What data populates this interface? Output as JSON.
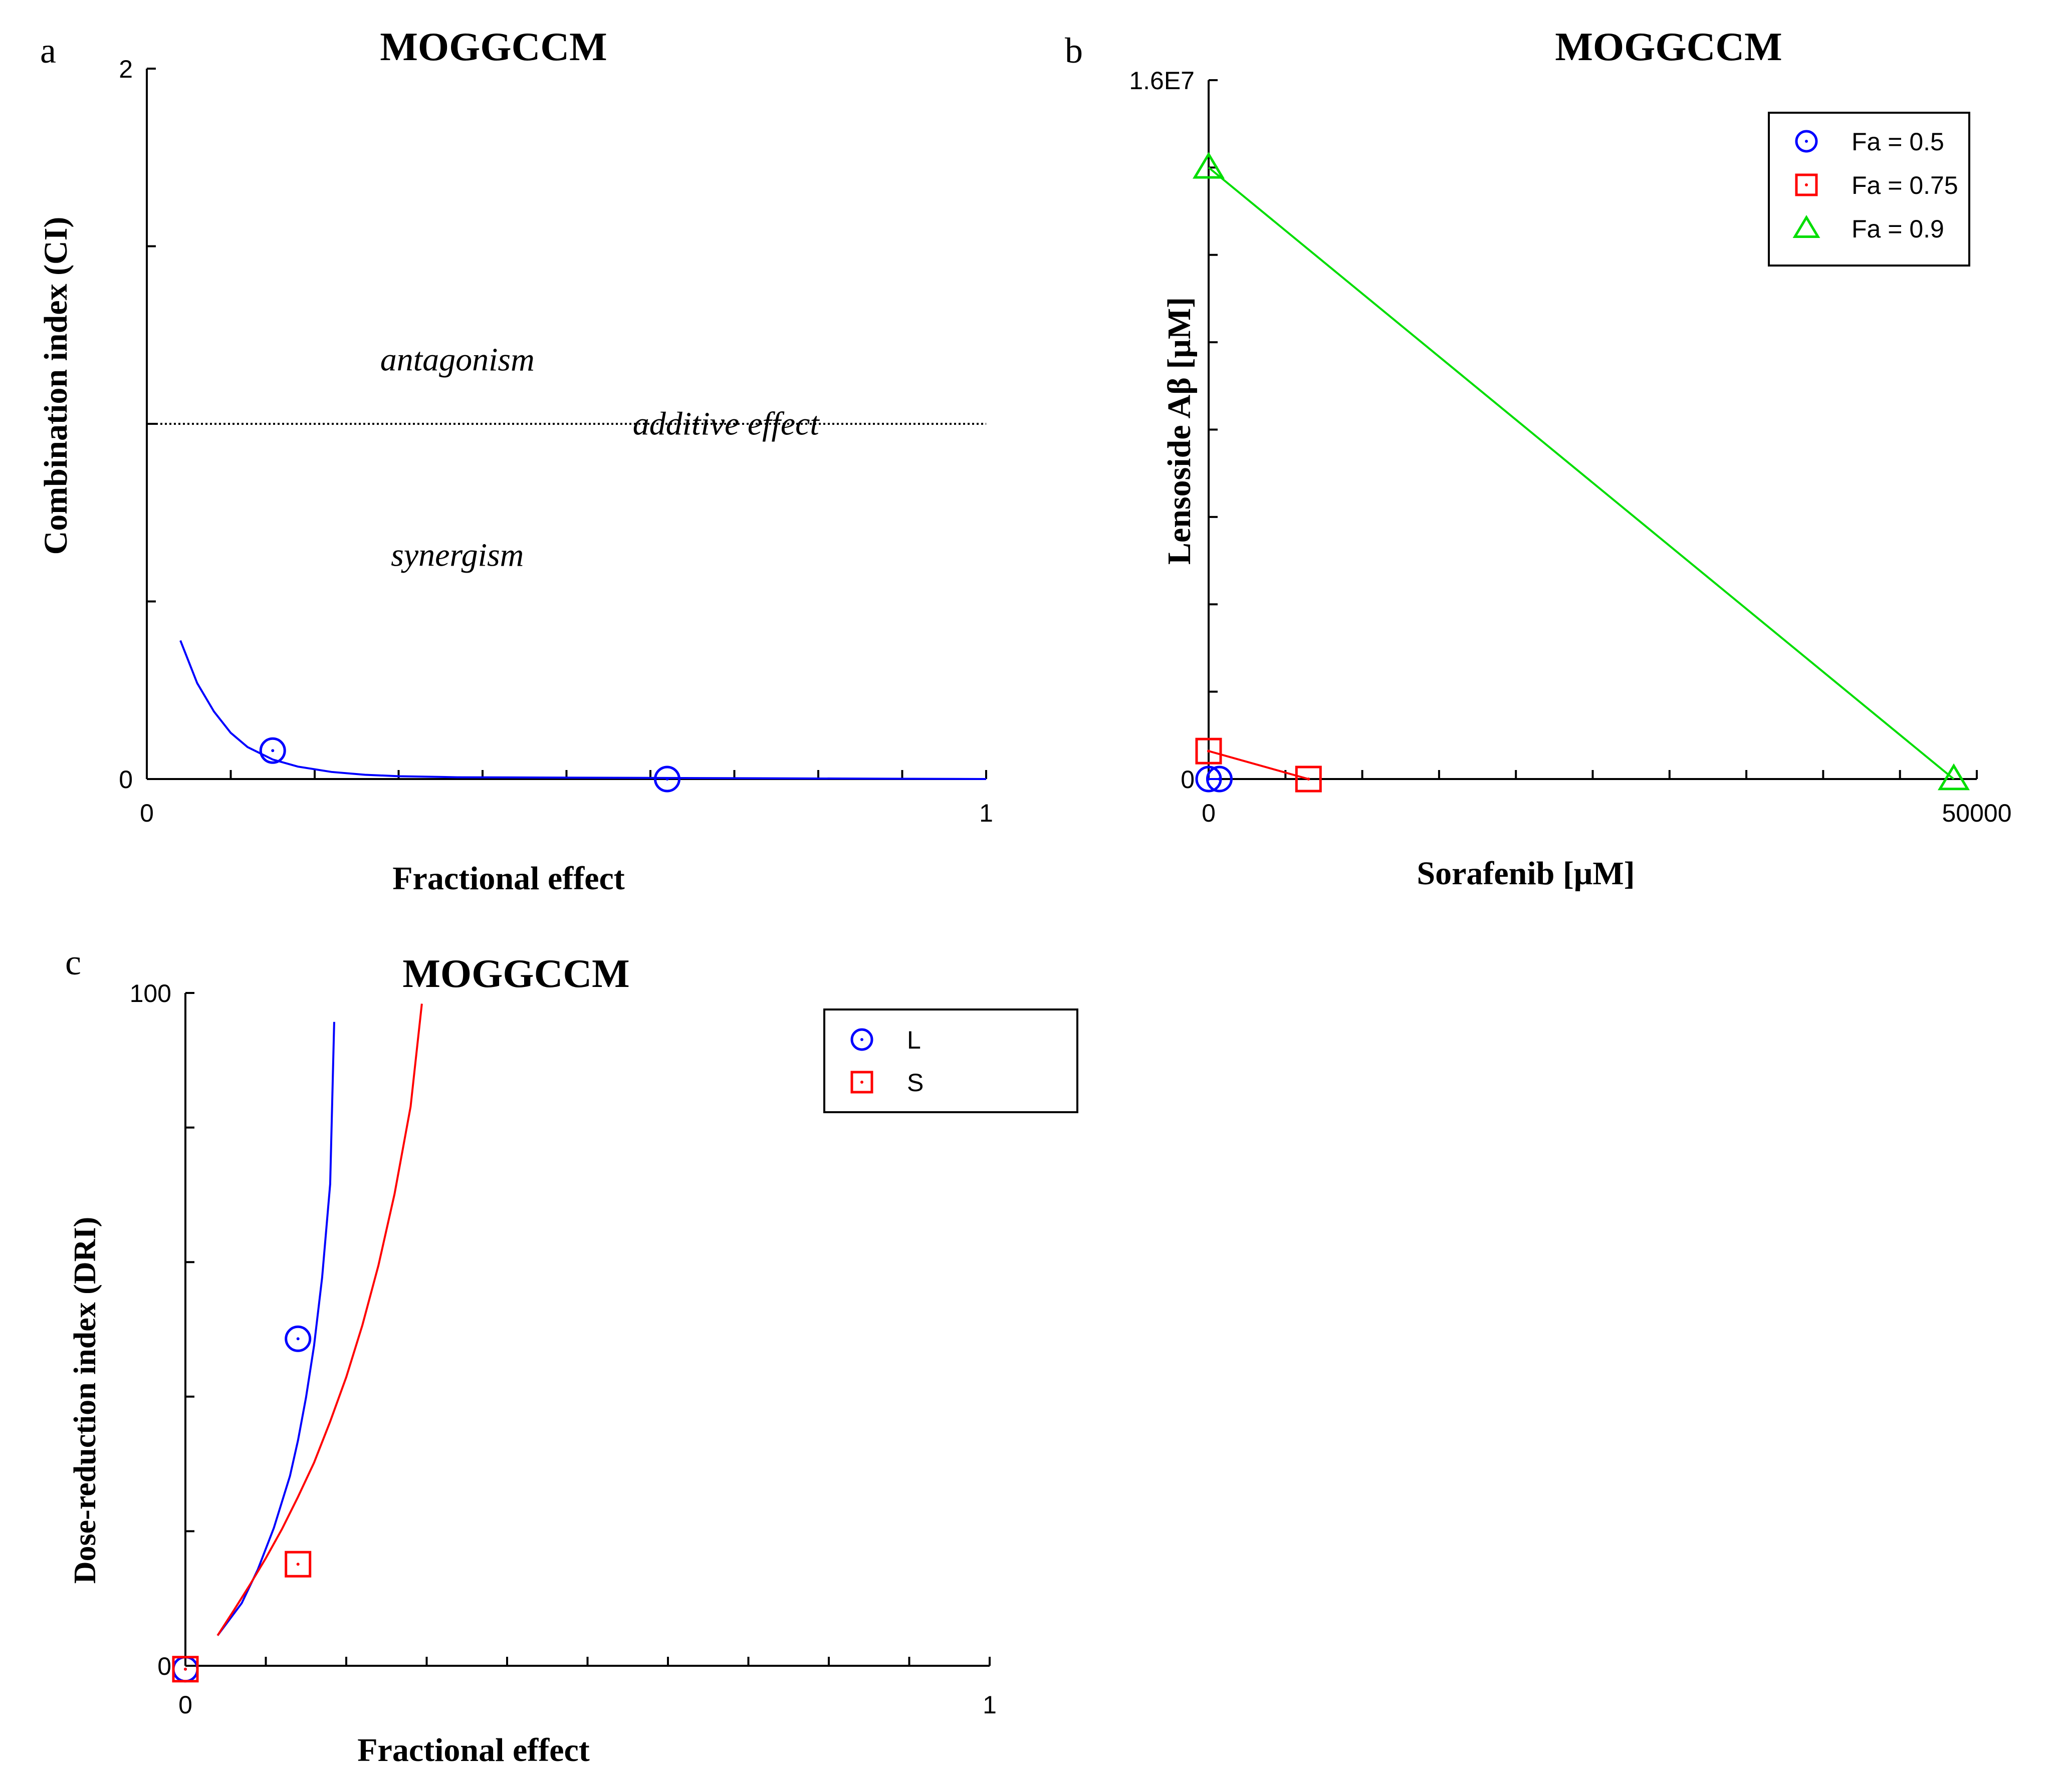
{
  "panels": [
    {
      "letter": "a",
      "chart_data": {
        "type": "line",
        "title": "MOGGCCM",
        "xlabel": "Fractional effect",
        "ylabel": "Combination index (CI)",
        "xlim": [
          0,
          1
        ],
        "ylim": [
          0,
          2
        ],
        "x_tick_labels": [
          {
            "v": 0,
            "t": "0"
          },
          {
            "v": 1,
            "t": "1"
          }
        ],
        "y_tick_labels": [
          {
            "v": 0,
            "t": "0"
          },
          {
            "v": 2,
            "t": "2"
          }
        ],
        "x_minor_ticks": [
          0.1,
          0.2,
          0.3,
          0.4,
          0.5,
          0.6,
          0.7,
          0.8,
          0.9
        ],
        "y_minor_ticks": [
          0.5,
          1.0,
          1.5
        ],
        "reference_line": {
          "y": 1.0,
          "style": "dotted"
        },
        "annotations": [
          {
            "text": "antagonism",
            "x": 0.37,
            "y": 1.15
          },
          {
            "text": "additive effect",
            "x": 0.69,
            "y": 0.97
          },
          {
            "text": "synergism",
            "x": 0.37,
            "y": 0.6
          }
        ],
        "series": [
          {
            "name": "CI curve",
            "kind": "line",
            "color": "#0000ff",
            "x": [
              0.04,
              0.06,
              0.08,
              0.1,
              0.12,
              0.15,
              0.18,
              0.22,
              0.26,
              0.3,
              0.37,
              1.0
            ],
            "y": [
              0.39,
              0.27,
              0.19,
              0.13,
              0.09,
              0.055,
              0.035,
              0.02,
              0.012,
              0.008,
              0.005,
              0.0
            ]
          },
          {
            "name": "CI points",
            "kind": "marker",
            "marker": "circle-dot",
            "color": "#0000ff",
            "x": [
              0.15,
              0.62
            ],
            "y": [
              0.08,
              0.0
            ]
          }
        ]
      }
    },
    {
      "letter": "b",
      "chart_data": {
        "type": "line",
        "title": "MOGGCCM",
        "xlabel": "Sorafenib [μM]",
        "ylabel": "Lensoside Aβ [μM]",
        "xlim": [
          0,
          50000
        ],
        "ylim": [
          0,
          16000000
        ],
        "x_tick_labels": [
          {
            "v": 0,
            "t": "0"
          },
          {
            "v": 50000,
            "t": "50000"
          }
        ],
        "y_tick_labels": [
          {
            "v": 0,
            "t": "0"
          },
          {
            "v": 16000000,
            "t": "1.6E7"
          }
        ],
        "x_minor_ticks": [
          5000,
          10000,
          15000,
          20000,
          25000,
          30000,
          35000,
          40000,
          45000
        ],
        "y_minor_ticks": [
          2000000,
          4000000,
          6000000,
          8000000,
          10000000,
          12000000,
          14000000
        ],
        "legend": {
          "position": "top-right",
          "entries": [
            {
              "label": "Fa = 0.5",
              "marker": "circle-dot",
              "color": "#0000ff"
            },
            {
              "label": "Fa = 0.75",
              "marker": "square-dot",
              "color": "#ff0000"
            },
            {
              "label": "Fa = 0.9",
              "marker": "triangle",
              "color": "#00dd00"
            }
          ]
        },
        "series": [
          {
            "name": "Fa = 0.5",
            "color": "#0000ff",
            "marker": "circle-dot",
            "x": [
              0,
              700
            ],
            "y": [
              0,
              0
            ]
          },
          {
            "name": "Fa = 0.75",
            "color": "#ff0000",
            "marker": "square-dot",
            "x": [
              0,
              6500
            ],
            "y": [
              640000,
              0
            ]
          },
          {
            "name": "Fa = 0.9",
            "color": "#00dd00",
            "marker": "triangle",
            "x": [
              0,
              48500
            ],
            "y": [
              14000000,
              0
            ]
          }
        ]
      }
    },
    {
      "letter": "c",
      "chart_data": {
        "type": "line",
        "title": "MOGGCCM",
        "xlabel": "Fractional effect",
        "ylabel": "Dose-reduction index (DRI)",
        "xlim": [
          0,
          1
        ],
        "ylim": [
          0,
          100
        ],
        "x_tick_labels": [
          {
            "v": 0,
            "t": "0"
          },
          {
            "v": 1,
            "t": "1"
          }
        ],
        "y_tick_labels": [
          {
            "v": 0,
            "t": "0"
          },
          {
            "v": 100,
            "t": "100"
          }
        ],
        "x_minor_ticks": [
          0.1,
          0.2,
          0.3,
          0.4,
          0.5,
          0.6,
          0.7,
          0.8,
          0.9
        ],
        "y_minor_ticks": [
          20,
          40,
          60,
          80
        ],
        "reference_line": {
          "y": 0,
          "style": "dotted"
        },
        "legend": {
          "position": "top-right",
          "entries": [
            {
              "label": "L",
              "marker": "circle-dot",
              "color": "#0000ff"
            },
            {
              "label": "S",
              "marker": "square-dot",
              "color": "#ff0000"
            }
          ]
        },
        "series": [
          {
            "name": "L curve",
            "kind": "line",
            "color": "#0000ff",
            "x": [
              0.04,
              0.07,
              0.09,
              0.11,
              0.13,
              0.14,
              0.15,
              0.16,
              0.17,
              0.18,
              0.185
            ],
            "y": [
              4.5,
              9.3,
              14.3,
              20.5,
              28.2,
              33.5,
              39.9,
              47.6,
              57.7,
              71.6,
              95.7
            ]
          },
          {
            "name": "S curve",
            "kind": "line",
            "color": "#ff0000",
            "x": [
              0.04,
              0.06,
              0.08,
              0.1,
              0.12,
              0.14,
              0.16,
              0.18,
              0.2,
              0.22,
              0.24,
              0.26,
              0.28,
              0.294
            ],
            "y": [
              4.5,
              8.2,
              12.0,
              16.0,
              20.3,
              25.1,
              30.2,
              36.3,
              42.9,
              50.6,
              59.5,
              70.1,
              83.1,
              98.4
            ]
          },
          {
            "name": "L",
            "kind": "marker",
            "marker": "circle-dot",
            "color": "#0000ff",
            "x": [
              0,
              0.14
            ],
            "y": [
              -0.5,
              48.6
            ]
          },
          {
            "name": "S",
            "kind": "marker",
            "marker": "square-dot",
            "color": "#ff0000",
            "x": [
              0,
              0.14
            ],
            "y": [
              -0.5,
              15.1
            ]
          }
        ]
      }
    }
  ]
}
